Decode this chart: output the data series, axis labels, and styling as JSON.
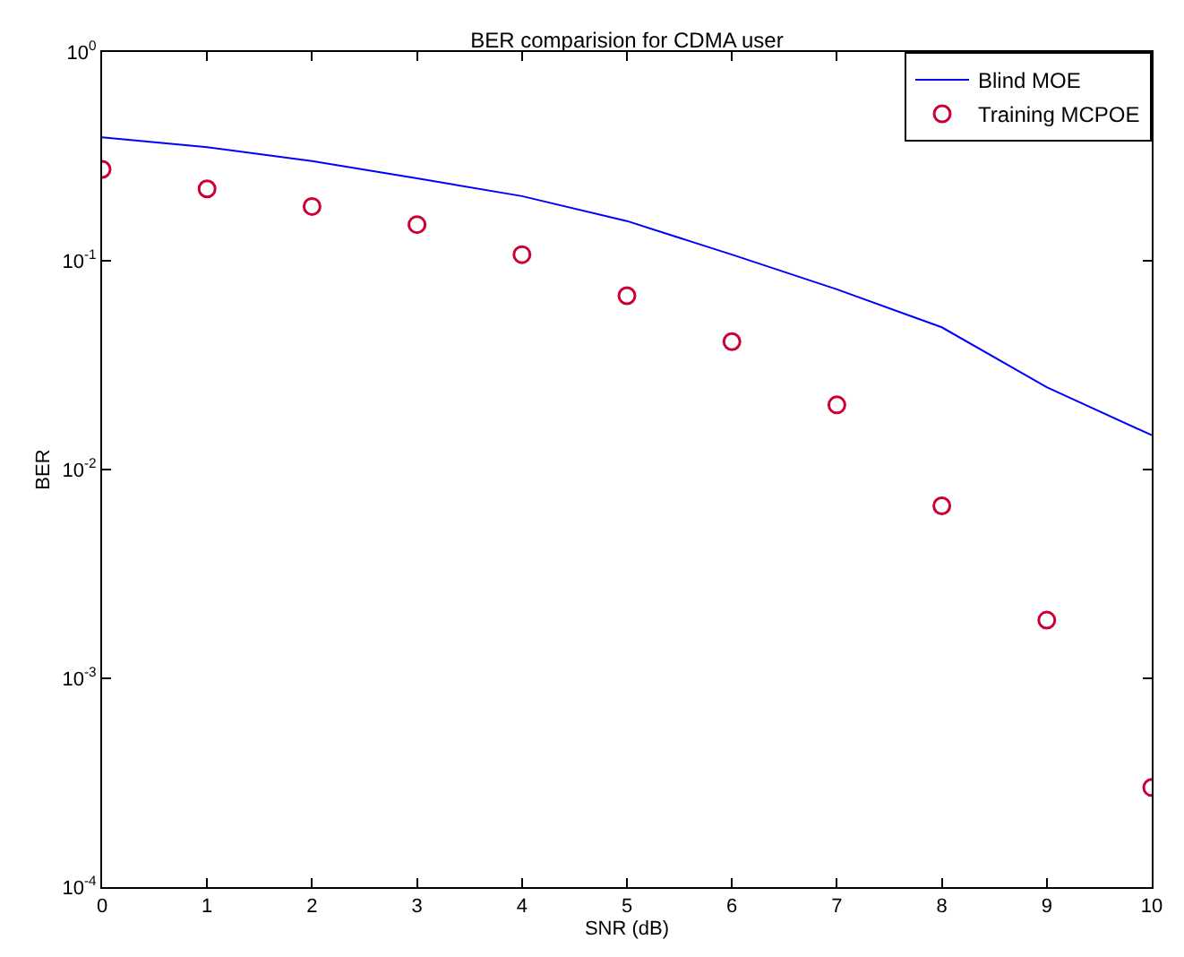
{
  "chart_data": {
    "type": "line",
    "title": "BER comparision for CDMA user",
    "xlabel": "SNR (dB)",
    "ylabel": "BER",
    "x": [
      0,
      1,
      2,
      3,
      4,
      5,
      6,
      7,
      8,
      9,
      10
    ],
    "series": [
      {
        "name": "Blind MOE",
        "color": "#0000ff",
        "marker": "none",
        "line_style": "solid",
        "values": [
          0.39,
          0.35,
          0.3,
          0.248,
          0.204,
          0.155,
          0.107,
          0.073,
          0.048,
          0.0248,
          0.0146
        ]
      },
      {
        "name": "Training MCPOE",
        "color": "#cc0033",
        "type": "scatter",
        "marker": "circle",
        "values": [
          0.274,
          0.221,
          0.182,
          0.149,
          0.107,
          0.068,
          0.041,
          0.0204,
          0.0067,
          0.0019,
          0.0003
        ]
      }
    ],
    "log": "y",
    "grid": false,
    "legend": "top right",
    "xlim": [
      0,
      10
    ],
    "xticks": [
      0,
      1,
      2,
      3,
      4,
      5,
      6,
      7,
      8,
      9,
      10
    ],
    "ylim": [
      0.0001,
      1
    ],
    "yticks": [
      {
        "value": 0.0001,
        "label": "10$^{-4}$"
      },
      {
        "value": 0.001,
        "label": "10$^{-3}$"
      },
      {
        "value": 0.01,
        "label": "10$^{-2}$"
      },
      {
        "value": 0.1,
        "label": "10$^{-1}$"
      },
      {
        "value": 1,
        "label": "10$^{0}$"
      }
    ]
  }
}
